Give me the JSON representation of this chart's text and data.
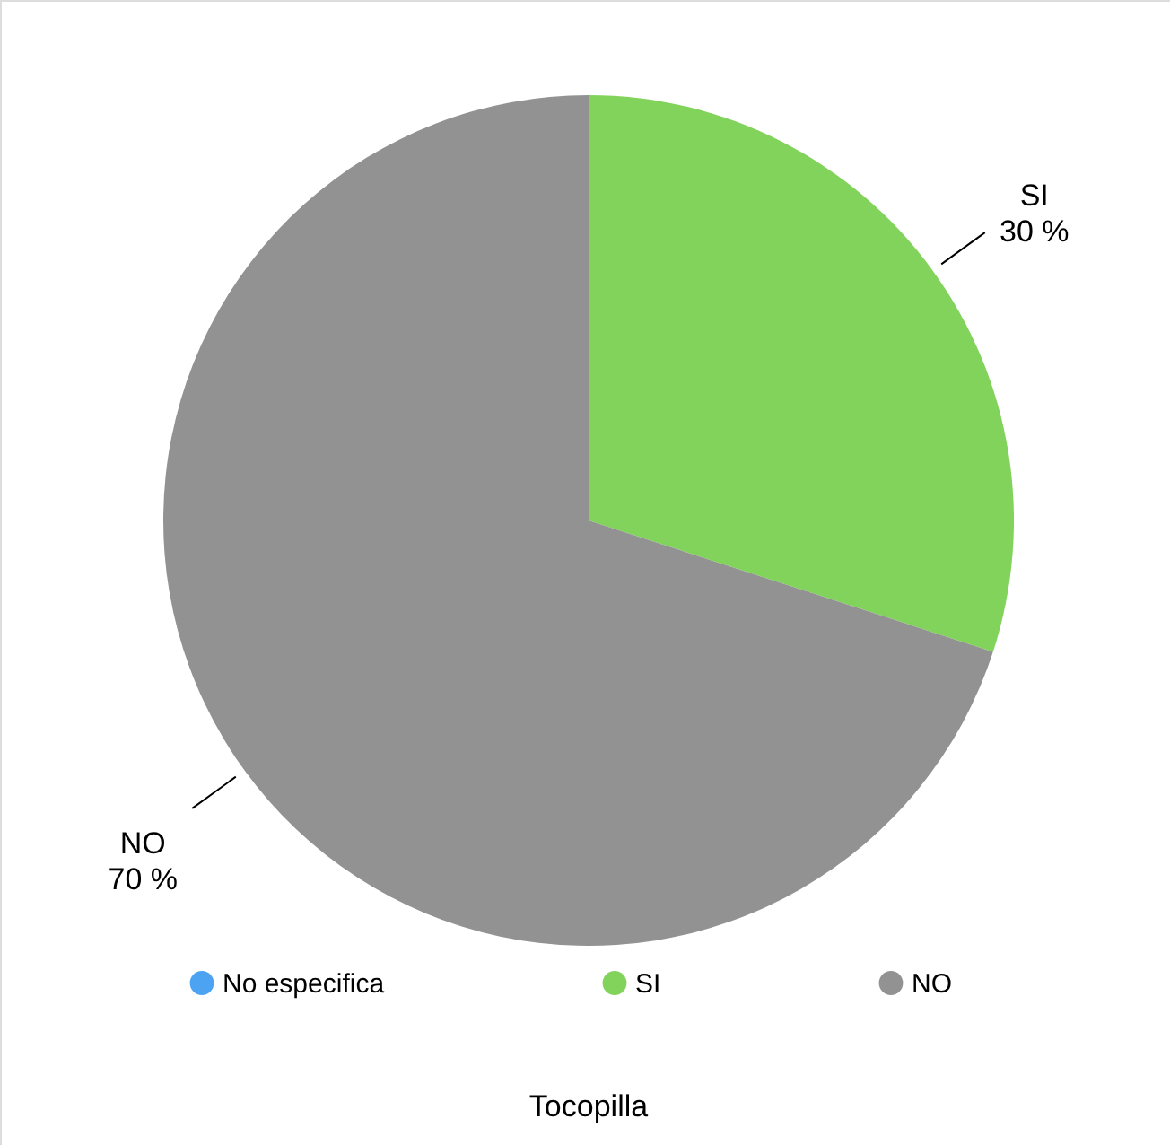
{
  "chart_data": {
    "type": "pie",
    "title": "Tocopilla",
    "categories": [
      "No especifica",
      "SI",
      "NO"
    ],
    "values": [
      0,
      30,
      70
    ],
    "colors": [
      "#4ba3f2",
      "#82d35b",
      "#929292"
    ],
    "value_labels": [
      null,
      "30 %",
      "70 %"
    ],
    "legend": "bottom"
  }
}
